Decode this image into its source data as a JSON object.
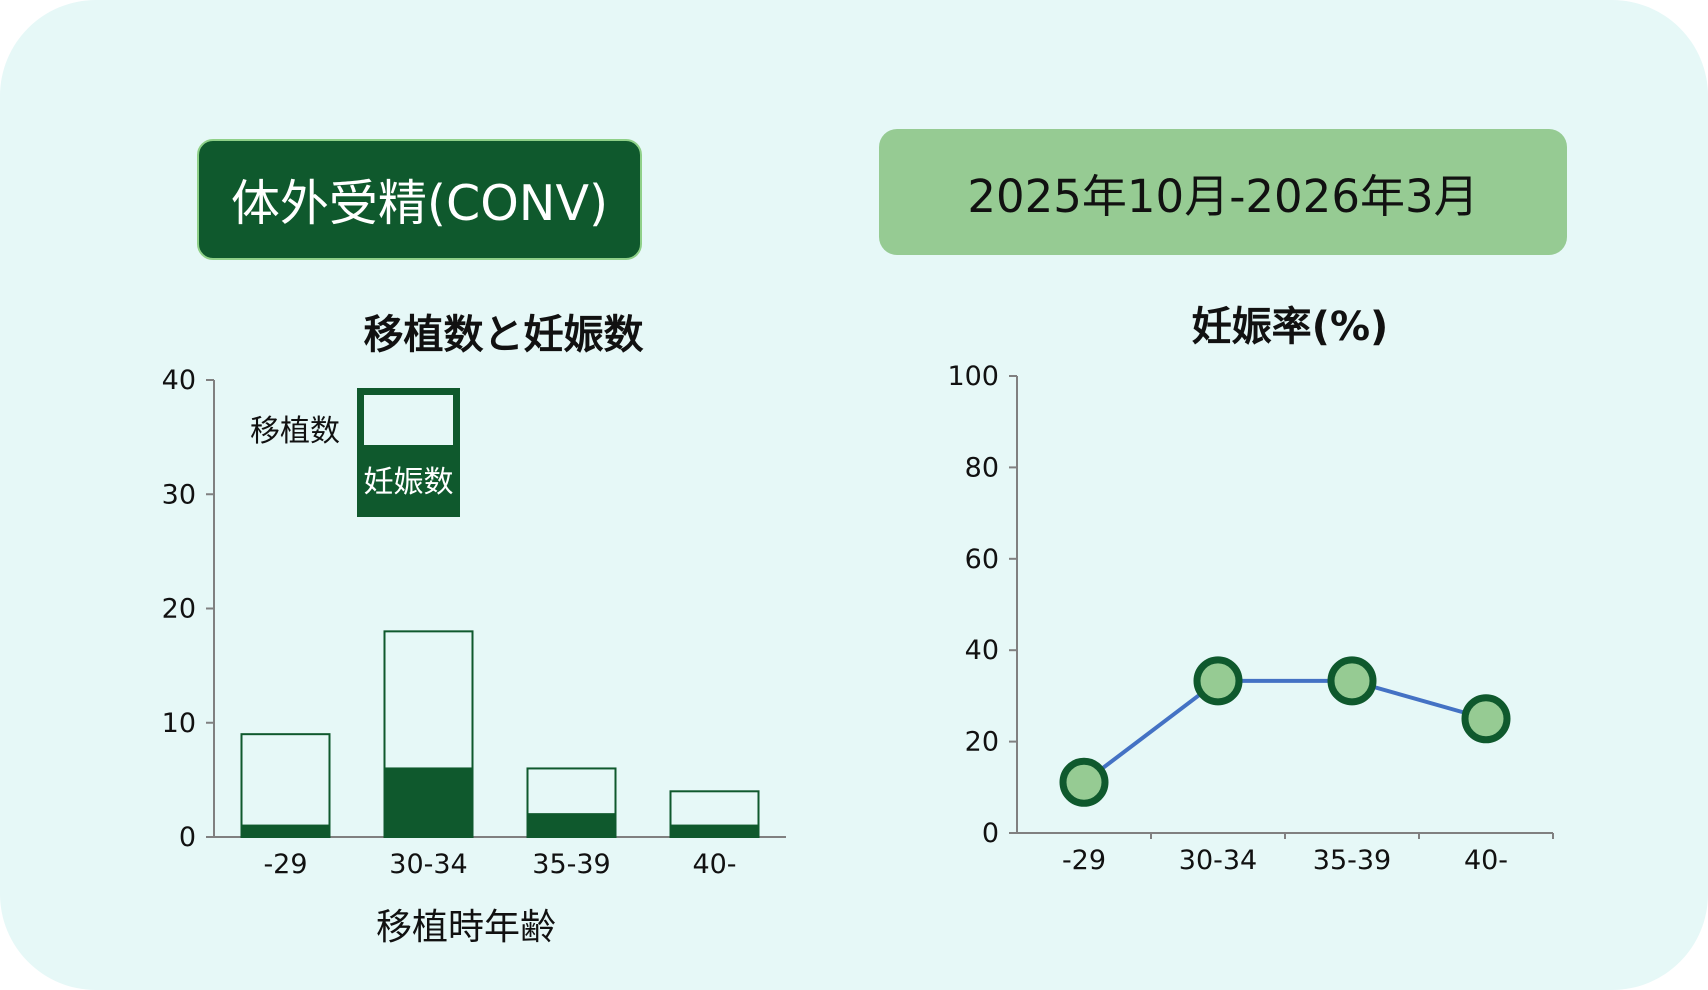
{
  "header": {
    "method_label": "体外受精(CONV)",
    "period_label": "2025年10月-2026年3月"
  },
  "colors": {
    "background": "#e6f8f7",
    "dark_green": "#0f592d",
    "light_green": "#96cb93",
    "line_blue": "#4472c4",
    "bar_fill": "#e6f8f7"
  },
  "chart_data": [
    {
      "type": "bar",
      "title": "移植数と妊娠数",
      "xlabel": "移植時年齢",
      "ylabel": "",
      "categories": [
        "-29",
        "30-34",
        "35-39",
        "40-"
      ],
      "ylim": [
        0,
        40
      ],
      "yticks": [
        0,
        10,
        20,
        30,
        40
      ],
      "series": [
        {
          "name": "移植数",
          "values": [
            9,
            18,
            6,
            4
          ]
        },
        {
          "name": "妊娠数",
          "values": [
            1,
            6,
            2,
            1
          ]
        }
      ],
      "overlapping": true,
      "legend": "top-left",
      "grid": false
    },
    {
      "type": "line",
      "title": "妊娠率(%)",
      "xlabel": "",
      "ylabel": "",
      "categories": [
        "-29",
        "30-34",
        "35-39",
        "40-"
      ],
      "ylim": [
        0,
        100
      ],
      "yticks": [
        0,
        20,
        40,
        60,
        80,
        100
      ],
      "series": [
        {
          "values": [
            11.1,
            33.3,
            33.3,
            25.0
          ]
        }
      ],
      "legend": "none",
      "grid": false
    }
  ]
}
